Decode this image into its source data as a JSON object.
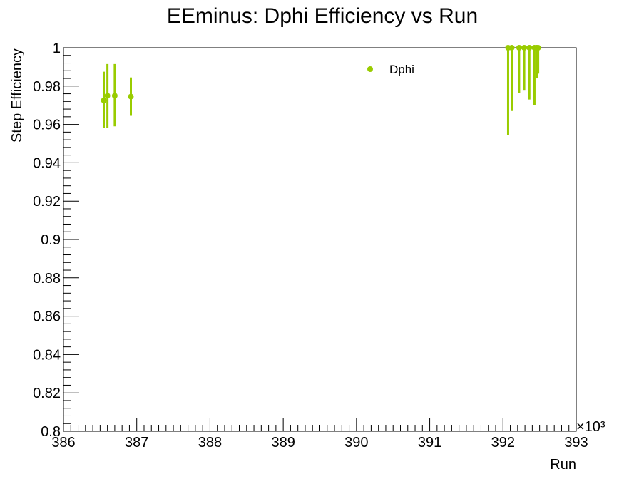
{
  "chart_data": {
    "type": "scatter",
    "title": "EEminus: Dphi Efficiency vs Run",
    "xlabel": "Run",
    "ylabel": "Step Efficiency",
    "x_multiplier_label": "×10³",
    "xlim": [
      386,
      393
    ],
    "ylim": [
      0.8,
      1.0
    ],
    "x_ticks": [
      386,
      387,
      388,
      389,
      390,
      391,
      392,
      393
    ],
    "x_tick_labels": [
      "386",
      "387",
      "388",
      "389",
      "390",
      "391",
      "392",
      "393"
    ],
    "y_ticks": [
      0.8,
      0.82,
      0.84,
      0.86,
      0.88,
      0.9,
      0.92,
      0.94,
      0.96,
      0.98,
      1.0
    ],
    "y_tick_labels": [
      "0.8",
      "0.82",
      "0.84",
      "0.86",
      "0.88",
      "0.9",
      "0.92",
      "0.94",
      "0.96",
      "0.98",
      "1"
    ],
    "grid": false,
    "legend": {
      "position": "top-center",
      "entries": [
        "Dphi"
      ]
    },
    "series": [
      {
        "name": "Dphi",
        "color": "#99cc00",
        "points": [
          {
            "x": 386.55,
            "y": 0.9725,
            "ylo": 0.958,
            "yhi": 0.9875
          },
          {
            "x": 386.6,
            "y": 0.975,
            "ylo": 0.958,
            "yhi": 0.9915
          },
          {
            "x": 386.7,
            "y": 0.975,
            "ylo": 0.959,
            "yhi": 0.9915
          },
          {
            "x": 386.92,
            "y": 0.9745,
            "ylo": 0.9645,
            "yhi": 0.9845
          },
          {
            "x": 392.07,
            "y": 1.0,
            "ylo": 0.9545,
            "yhi": 1.0
          },
          {
            "x": 392.12,
            "y": 1.0,
            "ylo": 0.967,
            "yhi": 1.0
          },
          {
            "x": 392.22,
            "y": 1.0,
            "ylo": 0.9765,
            "yhi": 1.0
          },
          {
            "x": 392.29,
            "y": 1.0,
            "ylo": 0.978,
            "yhi": 1.0
          },
          {
            "x": 392.36,
            "y": 1.0,
            "ylo": 0.973,
            "yhi": 1.0
          },
          {
            "x": 392.43,
            "y": 1.0,
            "ylo": 0.97,
            "yhi": 1.0
          },
          {
            "x": 392.46,
            "y": 1.0,
            "ylo": 0.984,
            "yhi": 1.0
          },
          {
            "x": 392.48,
            "y": 1.0,
            "ylo": 0.9865,
            "yhi": 1.0
          }
        ]
      }
    ]
  }
}
